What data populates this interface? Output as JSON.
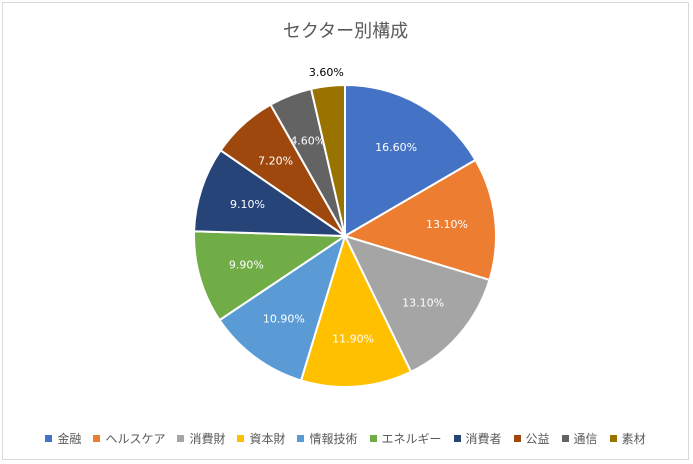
{
  "chart_data": {
    "type": "pie",
    "title": "セクター別構成",
    "categories": [
      "金融",
      "ヘルスケア",
      "消費財",
      "資本財",
      "情報技術",
      "エネルギー",
      "消費者",
      "公益",
      "通信",
      "素材"
    ],
    "values": [
      16.6,
      13.1,
      13.1,
      11.9,
      10.9,
      9.9,
      9.1,
      7.2,
      4.6,
      3.6
    ],
    "data_labels": [
      "16.60%",
      "13.10%",
      "13.10%",
      "11.90%",
      "10.90%",
      "9.90%",
      "9.10%",
      "7.20%",
      "4.60%",
      "3.60%"
    ],
    "colors": [
      "#4472c4",
      "#ed7d31",
      "#a5a5a5",
      "#ffc000",
      "#5b9bd5",
      "#70ad47",
      "#264478",
      "#9e480e",
      "#636363",
      "#997300"
    ],
    "label_colors": [
      "#ffffff",
      "#ffffff",
      "#ffffff",
      "#ffffff",
      "#ffffff",
      "#ffffff",
      "#ffffff",
      "#ffffff",
      "#ffffff",
      "#000000"
    ],
    "legend_position": "bottom",
    "start_angle": "top",
    "direction": "clockwise"
  }
}
